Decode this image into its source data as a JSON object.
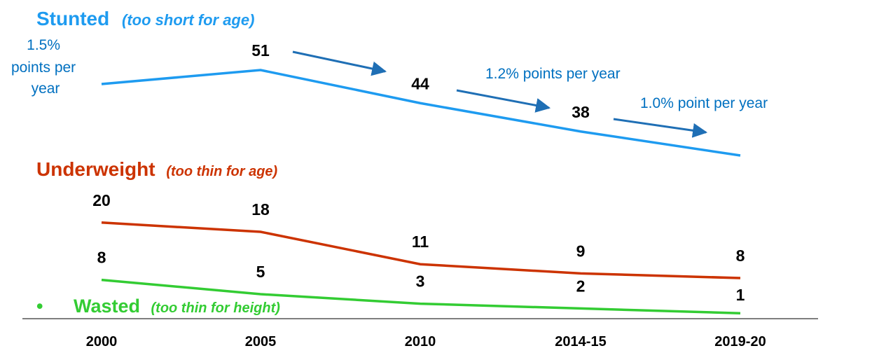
{
  "chart_data": {
    "type": "line",
    "categories": [
      "2000",
      "2005",
      "2010",
      "2014-15",
      "2019-20"
    ],
    "series": [
      {
        "name": "Stunted",
        "label": "Stunted",
        "sublabel": "(too short for age)",
        "color": "#1e9bf0",
        "values": [
          null,
          51,
          44,
          38,
          null
        ],
        "value_labels": [
          "",
          "51",
          "44",
          "38",
          ""
        ]
      },
      {
        "name": "Underweight",
        "label": "Underweight",
        "sublabel": "(too thin for age)",
        "color": "#cc3300",
        "values": [
          20,
          18,
          11,
          9,
          8
        ],
        "value_labels": [
          "20",
          "18",
          "11",
          "9",
          "8"
        ]
      },
      {
        "name": "Wasted",
        "label": "Wasted",
        "sublabel": "(too thin for height)",
        "bullet": "•",
        "color": "#33cc33",
        "values": [
          8,
          5,
          3,
          2,
          1
        ],
        "value_labels": [
          "8",
          "5",
          "3",
          "2",
          "1"
        ]
      }
    ],
    "annotations": {
      "rate_1_lines": [
        "1.5%",
        "points per",
        "year"
      ],
      "rate_2": "1.2% points per year",
      "rate_3": "1.0% point per year",
      "arrow_color": "#1f6fb5"
    },
    "x_axis_color": "#7f7f7f"
  }
}
